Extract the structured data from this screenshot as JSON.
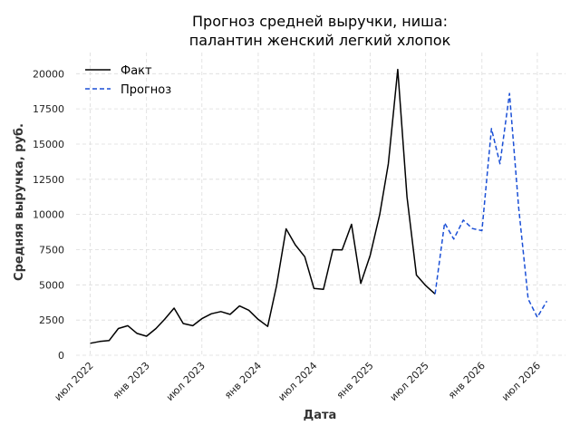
{
  "chart_data": {
    "type": "line",
    "title": [
      "Прогноз средней выручки, ниша:",
      "палантин женский легкий хлопок"
    ],
    "xlabel": "Дата",
    "ylabel": "Средняя выручка, руб.",
    "ylim": [
      0,
      21500
    ],
    "xlim": [
      "2022-05-16",
      "2026-10-01"
    ],
    "y_ticks": [
      0,
      2500,
      5000,
      7500,
      10000,
      12500,
      15000,
      17500,
      20000
    ],
    "x_ticks": [
      {
        "date": "2022-07-01",
        "label": "июл 2022"
      },
      {
        "date": "2023-01-01",
        "label": "янв 2023"
      },
      {
        "date": "2023-07-01",
        "label": "июл 2023"
      },
      {
        "date": "2024-01-01",
        "label": "янв 2024"
      },
      {
        "date": "2024-07-01",
        "label": "июл 2024"
      },
      {
        "date": "2025-01-01",
        "label": "янв 2025"
      },
      {
        "date": "2025-07-01",
        "label": "июл 2025"
      },
      {
        "date": "2026-01-01",
        "label": "янв 2026"
      },
      {
        "date": "2026-07-01",
        "label": "июл 2026"
      }
    ],
    "grid": true,
    "legend_position": "top-left",
    "series": [
      {
        "name": "Факт",
        "color": "#000000",
        "style": "solid",
        "points": [
          [
            "2022-07-01",
            850
          ],
          [
            "2022-08-01",
            980
          ],
          [
            "2022-09-01",
            1050
          ],
          [
            "2022-10-01",
            1900
          ],
          [
            "2022-11-01",
            2100
          ],
          [
            "2022-12-01",
            1550
          ],
          [
            "2023-01-01",
            1350
          ],
          [
            "2023-02-01",
            1900
          ],
          [
            "2023-03-01",
            2550
          ],
          [
            "2023-04-01",
            3350
          ],
          [
            "2023-05-01",
            2250
          ],
          [
            "2023-06-01",
            2100
          ],
          [
            "2023-07-01",
            2600
          ],
          [
            "2023-08-01",
            2950
          ],
          [
            "2023-09-01",
            3100
          ],
          [
            "2023-10-01",
            2900
          ],
          [
            "2023-11-01",
            3500
          ],
          [
            "2023-12-01",
            3200
          ],
          [
            "2024-01-01",
            2550
          ],
          [
            "2024-02-01",
            2050
          ],
          [
            "2024-03-01",
            4950
          ],
          [
            "2024-04-01",
            8980
          ],
          [
            "2024-05-01",
            7850
          ],
          [
            "2024-06-01",
            7000
          ],
          [
            "2024-07-01",
            4750
          ],
          [
            "2024-08-01",
            4680
          ],
          [
            "2024-09-01",
            7500
          ],
          [
            "2024-10-01",
            7480
          ],
          [
            "2024-11-01",
            9300
          ],
          [
            "2024-12-01",
            5100
          ],
          [
            "2025-01-01",
            7100
          ],
          [
            "2025-02-01",
            10000
          ],
          [
            "2025-03-01",
            13600
          ],
          [
            "2025-04-01",
            20300
          ],
          [
            "2025-05-01",
            11250
          ],
          [
            "2025-06-01",
            5700
          ],
          [
            "2025-07-01",
            4950
          ],
          [
            "2025-08-01",
            4350
          ]
        ]
      },
      {
        "name": "Прогноз",
        "color": "#1a4fd6",
        "style": "dashed",
        "points": [
          [
            "2025-08-01",
            4350
          ],
          [
            "2025-09-01",
            9400
          ],
          [
            "2025-10-01",
            8250
          ],
          [
            "2025-11-01",
            9600
          ],
          [
            "2025-12-01",
            9000
          ],
          [
            "2026-01-01",
            8850
          ],
          [
            "2026-02-01",
            16100
          ],
          [
            "2026-03-01",
            13600
          ],
          [
            "2026-04-01",
            18600
          ],
          [
            "2026-05-01",
            10500
          ],
          [
            "2026-06-01",
            4000
          ],
          [
            "2026-07-01",
            2700
          ],
          [
            "2026-08-01",
            3850
          ]
        ]
      }
    ]
  }
}
